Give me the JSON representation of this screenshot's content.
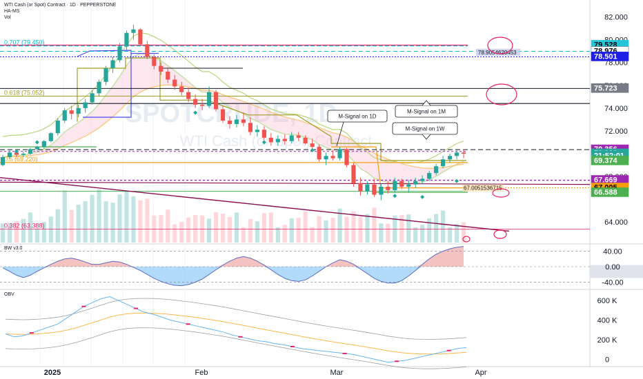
{
  "header": {
    "title": "WTI Cash (or Spot) Contract · 1D · PEPPERSTONE",
    "indicator1": "HA-MS",
    "indicator2": "Vol"
  },
  "watermark": {
    "symbol": "SPOTCRUDE, 1D",
    "name": "WTI Cash (or Spot) Contract"
  },
  "colors": {
    "up": "#26a69a",
    "down": "#ef5350",
    "fib": "#00bcd4",
    "purple": "#9c27b0",
    "magenta": "#e91e63",
    "orange": "#f59e0b",
    "olive": "#9e9d24"
  },
  "chart_data": [
    {
      "type": "candlestick",
      "title": "WTI Cash (or Spot) Contract · 1D · PEPPERSTONE",
      "ylim": [
        62.2,
        83.0
      ],
      "y_ticks": [
        "82.000",
        "80.000",
        "78.000",
        "76.000",
        "74.000",
        "72.000",
        "70.000",
        "68.000",
        "64.000"
      ],
      "x_labels": [
        "2025",
        "Feb",
        "Mar",
        "Apr"
      ],
      "candles": [
        [
          69.0,
          69.9,
          68.9,
          69.7
        ],
        [
          69.7,
          70.3,
          69.5,
          70.1
        ],
        [
          70.1,
          70.3,
          69.7,
          69.9
        ],
        [
          69.9,
          70.2,
          69.7,
          70.0
        ],
        [
          70.0,
          70.5,
          69.9,
          70.4
        ],
        [
          70.4,
          70.7,
          70.2,
          70.6
        ],
        [
          70.6,
          71.2,
          70.4,
          71.1
        ],
        [
          71.1,
          71.9,
          71.0,
          71.8
        ],
        [
          71.8,
          73.1,
          71.6,
          72.9
        ],
        [
          72.9,
          74.0,
          72.7,
          73.8
        ],
        [
          73.8,
          74.2,
          73.0,
          73.5
        ],
        [
          73.5,
          74.3,
          73.2,
          74.0
        ],
        [
          74.0,
          74.8,
          73.6,
          74.5
        ],
        [
          74.5,
          75.6,
          74.3,
          75.3
        ],
        [
          75.3,
          76.5,
          75.0,
          76.3
        ],
        [
          76.3,
          77.7,
          76.0,
          77.5
        ],
        [
          77.5,
          78.5,
          77.1,
          78.2
        ],
        [
          78.2,
          79.7,
          78.0,
          79.4
        ],
        [
          79.4,
          80.8,
          79.0,
          80.6
        ],
        [
          80.6,
          81.3,
          80.0,
          80.9
        ],
        [
          80.9,
          81.0,
          79.5,
          79.6
        ],
        [
          79.6,
          79.9,
          78.3,
          78.5
        ],
        [
          78.5,
          78.7,
          77.4,
          77.7
        ],
        [
          77.7,
          78.0,
          76.9,
          77.2
        ],
        [
          77.2,
          77.6,
          76.2,
          76.5
        ],
        [
          76.5,
          76.9,
          75.6,
          75.9
        ],
        [
          75.9,
          76.3,
          75.1,
          75.4
        ],
        [
          75.4,
          75.8,
          74.5,
          74.8
        ],
        [
          74.8,
          75.2,
          74.0,
          74.3
        ],
        [
          74.3,
          74.8,
          73.8,
          74.2
        ],
        [
          74.2,
          75.9,
          74.0,
          75.4
        ],
        [
          75.4,
          75.6,
          73.7,
          73.9
        ],
        [
          73.9,
          74.2,
          72.7,
          72.9
        ],
        [
          72.9,
          73.3,
          72.2,
          72.6
        ],
        [
          72.6,
          73.4,
          72.3,
          73.0
        ],
        [
          73.0,
          73.6,
          72.4,
          72.7
        ],
        [
          72.7,
          73.2,
          71.6,
          71.9
        ],
        [
          71.9,
          72.5,
          71.5,
          72.1
        ],
        [
          72.1,
          72.4,
          71.2,
          71.4
        ],
        [
          71.4,
          71.8,
          70.7,
          71.0
        ],
        [
          71.0,
          71.6,
          70.7,
          71.3
        ],
        [
          71.3,
          71.7,
          70.8,
          71.1
        ],
        [
          71.1,
          71.9,
          70.9,
          71.6
        ],
        [
          71.6,
          71.9,
          71.1,
          71.4
        ],
        [
          71.4,
          71.6,
          70.8,
          70.9
        ],
        [
          70.9,
          71.3,
          70.3,
          70.6
        ],
        [
          70.6,
          70.8,
          69.3,
          69.5
        ],
        [
          69.5,
          70.1,
          69.0,
          69.8
        ],
        [
          69.8,
          70.3,
          69.4,
          69.6
        ],
        [
          69.6,
          70.6,
          69.4,
          70.4
        ],
        [
          70.4,
          70.5,
          68.8,
          69.0
        ],
        [
          69.0,
          69.2,
          67.1,
          67.4
        ],
        [
          67.4,
          67.9,
          66.3,
          66.7
        ],
        [
          66.7,
          67.6,
          66.4,
          67.3
        ],
        [
          67.3,
          67.8,
          66.2,
          66.4
        ],
        [
          66.4,
          67.4,
          65.9,
          67.1
        ],
        [
          67.1,
          67.6,
          66.5,
          66.8
        ],
        [
          66.8,
          67.9,
          66.6,
          67.6
        ],
        [
          67.6,
          67.8,
          66.9,
          67.1
        ],
        [
          67.1,
          67.7,
          66.6,
          67.3
        ],
        [
          67.3,
          67.9,
          67.0,
          67.6
        ],
        [
          67.6,
          68.1,
          67.3,
          67.8
        ],
        [
          67.8,
          68.5,
          67.6,
          68.3
        ],
        [
          68.3,
          69.1,
          68.1,
          68.9
        ],
        [
          68.9,
          69.8,
          68.7,
          69.5
        ],
        [
          69.5,
          70.0,
          69.2,
          69.8
        ],
        [
          69.8,
          70.3,
          69.5,
          70.1
        ],
        [
          70.1,
          70.4,
          69.6,
          70.0
        ]
      ],
      "horizontal_levels": [
        {
          "label": "0.707 (79.450)",
          "value": 79.45
        },
        {
          "label": "0.618 (75.052)",
          "value": 75.052
        },
        {
          "label": "0.5 (69.220)",
          "value": 69.22
        },
        {
          "label": "0.382 (63.388)",
          "value": 63.388
        }
      ],
      "annotations": [
        "M-Signal on 1D",
        "M-Signal on 1M",
        "M-Signal on 1W",
        "78.9054620453",
        "67.0051536715"
      ],
      "price_tags": [
        {
          "value": "79.528",
          "bg": "#26c6da",
          "fg": "#000000",
          "y": 79.528
        },
        {
          "value": "78.976",
          "bg": "#ffffff",
          "fg": "#000000",
          "y": 78.976
        },
        {
          "value": "78.501",
          "bg": "#1e1ee6",
          "fg": "#ffffff",
          "y": 78.501
        },
        {
          "value": "75.723",
          "bg": "#787b86",
          "fg": "#ffffff",
          "y": 75.723
        },
        {
          "value": "70.356",
          "bg": "#9c27b0",
          "fg": "#ffffff",
          "y": 70.356
        },
        {
          "value": "70.006",
          "bg": "#26a69a",
          "fg": "#ffffff",
          "y": 70.006
        },
        {
          "value": "21:52:01",
          "bg": "#26a69a",
          "fg": "#ffffff",
          "y": 69.8
        },
        {
          "value": "69.374",
          "bg": "#4caf50",
          "fg": "#ffffff",
          "y": 69.374
        },
        {
          "value": "67.669",
          "bg": "#9c27b0",
          "fg": "#ffffff",
          "y": 67.669
        },
        {
          "value": "67.005",
          "bg": "#f59e0b",
          "fg": "#000000",
          "y": 67.005
        },
        {
          "value": "66.588",
          "bg": "#4caf50",
          "fg": "#ffffff",
          "y": 66.588
        }
      ]
    },
    {
      "type": "area",
      "title": "BW v3.0",
      "ylim": [
        -55,
        55
      ],
      "y_ticks": [
        "40.00",
        "0.00",
        "-40.00"
      ],
      "values": [
        -3,
        -12,
        -22,
        -28,
        -22,
        -12,
        -3,
        6,
        14,
        20,
        22,
        18,
        12,
        6,
        6,
        10,
        14,
        12,
        6,
        -2,
        -10,
        -20,
        -30,
        -38,
        -44,
        -48,
        -49,
        -46,
        -40,
        -32,
        -20,
        -8,
        4,
        14,
        22,
        26,
        22,
        14,
        4,
        -8,
        -20,
        -30,
        -36,
        -38,
        -34,
        -24,
        -12,
        0,
        10,
        18,
        14,
        6,
        -6,
        -18,
        -30,
        -38,
        -42,
        -42,
        -36,
        -24,
        -10,
        6,
        20,
        32,
        40,
        46,
        50,
        52
      ]
    },
    {
      "type": "line",
      "title": "OBV",
      "ylim": [
        -60,
        700
      ],
      "y_ticks": [
        "600 K",
        "400 K",
        "200 K",
        "0"
      ],
      "values": [
        260,
        230,
        240,
        270,
        300,
        330,
        360,
        420,
        480,
        540,
        580,
        620,
        640,
        600,
        560,
        520,
        480,
        460,
        430,
        400,
        380,
        360,
        340,
        320,
        300,
        280,
        250,
        230,
        210,
        190,
        180,
        160,
        150,
        130,
        110,
        100,
        90,
        80,
        70,
        60,
        50,
        30,
        10,
        -10,
        -30,
        -20,
        -10,
        10,
        30,
        50,
        70,
        90,
        110,
        120
      ]
    }
  ]
}
